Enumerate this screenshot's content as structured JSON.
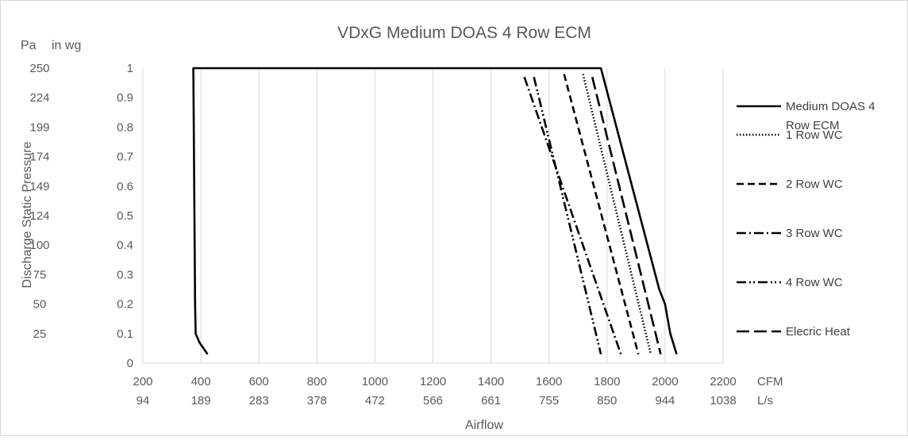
{
  "chart_data": {
    "type": "line",
    "title": "VDxG Medium DOAS 4 Row ECM",
    "xlabel": "Airflow",
    "ylabel": "Discharge Static Pressure",
    "x_unit_primary": "CFM",
    "x_unit_secondary": "L/s",
    "y_unit_primary": "in wg",
    "y_unit_secondary": "Pa",
    "xlim": [
      200,
      2200
    ],
    "ylim": [
      0,
      1
    ],
    "x_ticks": [
      "200",
      "400",
      "600",
      "800",
      "1000",
      "1200",
      "1400",
      "1600",
      "1800",
      "2000",
      "2200"
    ],
    "x_ticks_secondary": [
      "94",
      "189",
      "283",
      "378",
      "472",
      "566",
      "661",
      "755",
      "850",
      "944",
      "1038"
    ],
    "y_ticks": [
      "0",
      "0.1",
      "0.2",
      "0.3",
      "0.4",
      "0.5",
      "0.6",
      "0.7",
      "0.8",
      "0.9",
      "1"
    ],
    "y_ticks_secondary": [
      "",
      "25",
      "50",
      "75",
      "100",
      "124",
      "149",
      "174",
      "199",
      "224",
      "250"
    ],
    "grid": "vertical",
    "legend_position": "right",
    "series": [
      {
        "name": "Medium DOAS 4 Row ECM",
        "dash": "solid",
        "points": [
          [
            423,
            0.03
          ],
          [
            395,
            0.07
          ],
          [
            382,
            0.1
          ],
          [
            380,
            0.2
          ],
          [
            374,
            1.0
          ],
          [
            1779,
            1.0
          ],
          [
            1980,
            0.25
          ],
          [
            2000,
            0.2
          ],
          [
            2018,
            0.1
          ],
          [
            2040,
            0.03
          ]
        ]
      },
      {
        "name": "1 Row WC",
        "dash": "dot",
        "points": [
          [
            1717,
            0.98
          ],
          [
            1951,
            0.03
          ]
        ]
      },
      {
        "name": "2 Row WC",
        "dash": "dash",
        "points": [
          [
            1652,
            0.98
          ],
          [
            1908,
            0.03
          ]
        ]
      },
      {
        "name": "3 Row WC",
        "dash": "dashdot",
        "points": [
          [
            1515,
            0.97
          ],
          [
            1848,
            0.03
          ]
        ]
      },
      {
        "name": "4 Row WC",
        "dash": "dashdotdot",
        "points": [
          [
            1548,
            0.97
          ],
          [
            1779,
            0.03
          ]
        ]
      },
      {
        "name": "Elecric Heat",
        "dash": "longdash",
        "points": [
          [
            1749,
            0.97
          ],
          [
            1985,
            0.03
          ]
        ]
      }
    ]
  }
}
